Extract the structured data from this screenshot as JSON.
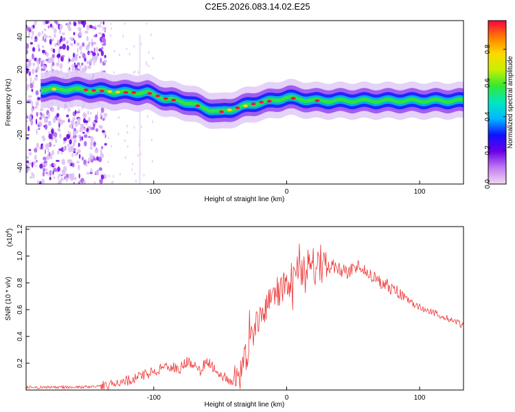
{
  "title": "C2E5.2026.083.14.02.E25",
  "chart_data": [
    {
      "type": "heatmap",
      "name": "spectrogram",
      "xlabel": "Height of straight line (km)",
      "ylabel": "Frequency (Hz)",
      "xlim": [
        -196,
        133
      ],
      "ylim": [
        -50,
        50
      ],
      "x_ticks": [
        -100,
        0,
        100
      ],
      "y_ticks": [
        -40,
        -20,
        0,
        20,
        40
      ],
      "colorbar": {
        "label": "Normalized spectral amplitude",
        "range": [
          0.0,
          0.97
        ],
        "ticks": [
          0.0,
          0.2,
          0.4,
          0.6,
          0.8
        ]
      },
      "ridge": {
        "x": [
          -185,
          -160,
          -140,
          -120,
          -105,
          -90,
          -75,
          -60,
          -50,
          -40,
          -30,
          -20,
          -10,
          0,
          10,
          20,
          40,
          70,
          100,
          133
        ],
        "freq": [
          8,
          8,
          7,
          6,
          6,
          2,
          0,
          -4,
          -6,
          -4,
          -2,
          0,
          1,
          3,
          2,
          1,
          1,
          1,
          1,
          1
        ]
      }
    },
    {
      "type": "line",
      "name": "snr",
      "xlabel": "Height of straight line (km)",
      "ylabel": "SNR (10 * v/v)",
      "y_scale_label": "(x10",
      "y_scale_exponent": "4",
      "xlim": [
        -196,
        133
      ],
      "ylim": [
        0,
        1.22
      ],
      "x_ticks": [
        -100,
        0,
        100
      ],
      "y_ticks": [
        0.2,
        0.4,
        0.6,
        0.8,
        1.0,
        1.2
      ],
      "series": [
        {
          "name": "SNR",
          "color": "#ee3333",
          "x": [
            -196,
            -180,
            -160,
            -150,
            -140,
            -130,
            -120,
            -110,
            -100,
            -90,
            -80,
            -75,
            -70,
            -65,
            -60,
            -55,
            -50,
            -45,
            -40,
            -35,
            -30,
            -25,
            -20,
            -15,
            -10,
            -5,
            0,
            5,
            10,
            15,
            20,
            25,
            30,
            35,
            40,
            45,
            50,
            55,
            60,
            65,
            70,
            75,
            80,
            85,
            90,
            95,
            100,
            105,
            110,
            115,
            120,
            125,
            133
          ],
          "values": [
            0.02,
            0.02,
            0.02,
            0.025,
            0.03,
            0.04,
            0.07,
            0.1,
            0.14,
            0.18,
            0.16,
            0.22,
            0.2,
            0.15,
            0.22,
            0.16,
            0.12,
            0.08,
            0.05,
            0.12,
            0.25,
            0.45,
            0.55,
            0.62,
            0.68,
            0.72,
            0.8,
            0.85,
            0.92,
            0.9,
            0.92,
            0.95,
            0.92,
            0.93,
            0.9,
            0.88,
            0.9,
            0.92,
            0.88,
            0.85,
            0.8,
            0.78,
            0.75,
            0.72,
            0.68,
            0.64,
            0.62,
            0.6,
            0.58,
            0.56,
            0.54,
            0.52,
            0.48
          ]
        }
      ]
    }
  ]
}
